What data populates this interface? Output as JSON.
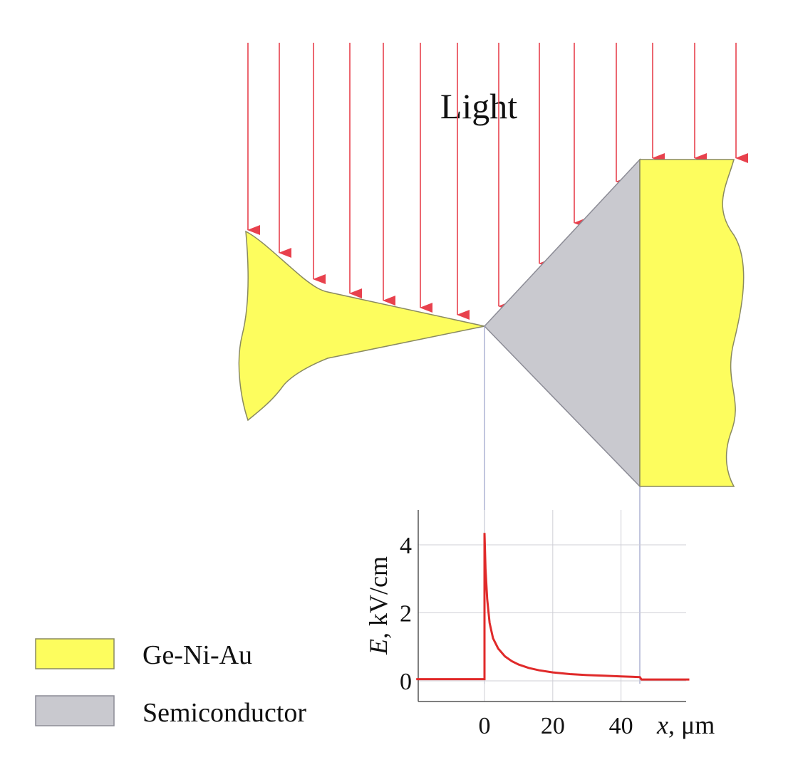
{
  "title": "Light",
  "legend": [
    {
      "label": "Ge-Ni-Au",
      "color": "#fdfd5e",
      "stroke": "#8c8c5a"
    },
    {
      "label": "Semiconductor",
      "color": "#c9c9cf",
      "stroke": "#8c8c96"
    }
  ],
  "colors": {
    "arrow": "#e8414d",
    "curve": "#e02a2a",
    "metal": "#fdfd5e",
    "semiconductor": "#c9c9cf",
    "guide": "#9aa0c8",
    "grid": "#c8c8d0"
  },
  "chart_data": {
    "type": "line",
    "ylabel_italic": "E",
    "ylabel_rest": ", kV/cm",
    "xlabel_italic": "x",
    "xlabel_rest": ", μm",
    "xlim": [
      -20,
      60
    ],
    "ylim": [
      -0.5,
      5
    ],
    "xticks": [
      0,
      20,
      40
    ],
    "yticks": [
      0,
      2,
      4
    ],
    "grid": true,
    "series": [
      {
        "x": [
          -20,
          -0.01,
          0,
          0.3,
          0.8,
          1.5,
          2.5,
          4,
          6,
          8,
          10,
          13,
          16,
          20,
          25,
          30,
          35,
          40,
          45.5,
          46,
          60
        ],
        "y": [
          0.05,
          0.05,
          4.35,
          3.3,
          2.4,
          1.7,
          1.25,
          0.95,
          0.72,
          0.58,
          0.48,
          0.38,
          0.31,
          0.25,
          0.2,
          0.17,
          0.15,
          0.13,
          0.11,
          0.04,
          0.04
        ]
      }
    ]
  }
}
